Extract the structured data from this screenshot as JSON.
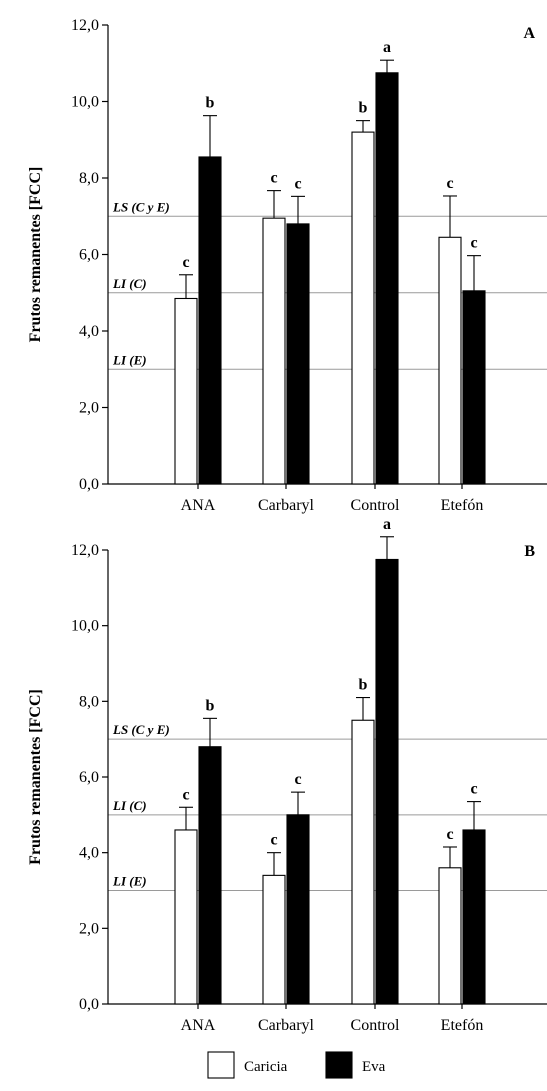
{
  "chart_data": [
    {
      "type": "bar",
      "panel": "A",
      "categories": [
        "ANA",
        "Carbaryl",
        "Control",
        "Etefón"
      ],
      "series": [
        {
          "name": "Caricia",
          "color": "#ffffff",
          "values": [
            4.85,
            6.95,
            9.2,
            6.45
          ],
          "errors": [
            0.62,
            0.72,
            0.3,
            1.08
          ],
          "letters": [
            "c",
            "c",
            "b",
            "c"
          ]
        },
        {
          "name": "Eva",
          "color": "#000000",
          "values": [
            8.55,
            6.8,
            10.75,
            5.05
          ],
          "errors": [
            1.08,
            0.72,
            0.33,
            0.92
          ],
          "letters": [
            "b",
            "c",
            "a",
            "c"
          ]
        }
      ],
      "ylabel": "Frutos remanentes [FCC]",
      "xlabel": "",
      "ylim": [
        0,
        12
      ],
      "yticks": [
        "0,0",
        "2,0",
        "4,0",
        "6,0",
        "8,0",
        "10,0",
        "12,0"
      ],
      "reference_lines": [
        {
          "label": "LS (C y E)",
          "y": 7.0
        },
        {
          "label": "LI (C)",
          "y": 5.0
        },
        {
          "label": "LI (E)",
          "y": 3.0
        }
      ]
    },
    {
      "type": "bar",
      "panel": "B",
      "categories": [
        "ANA",
        "Carbaryl",
        "Control",
        "Etefón"
      ],
      "series": [
        {
          "name": "Caricia",
          "color": "#ffffff",
          "values": [
            4.6,
            3.4,
            7.5,
            3.6
          ],
          "errors": [
            0.6,
            0.6,
            0.6,
            0.55
          ],
          "letters": [
            "c",
            "c",
            "b",
            "c"
          ]
        },
        {
          "name": "Eva",
          "color": "#000000",
          "values": [
            6.8,
            5.0,
            11.75,
            4.6
          ],
          "errors": [
            0.75,
            0.6,
            0.6,
            0.75
          ],
          "letters": [
            "b",
            "c",
            "a",
            "c"
          ]
        }
      ],
      "ylabel": "Frutos remanentes [FCC]",
      "xlabel": "",
      "ylim": [
        0,
        12
      ],
      "yticks": [
        "0,0",
        "2,0",
        "4,0",
        "6,0",
        "8,0",
        "10,0",
        "12,0"
      ],
      "reference_lines": [
        {
          "label": "LS (C y E)",
          "y": 7.0
        },
        {
          "label": "LI (C)",
          "y": 5.0
        },
        {
          "label": "LI (E)",
          "y": 3.0
        }
      ]
    }
  ],
  "legend": [
    {
      "name": "Caricia",
      "color": "#ffffff"
    },
    {
      "name": "Eva",
      "color": "#000000"
    }
  ]
}
